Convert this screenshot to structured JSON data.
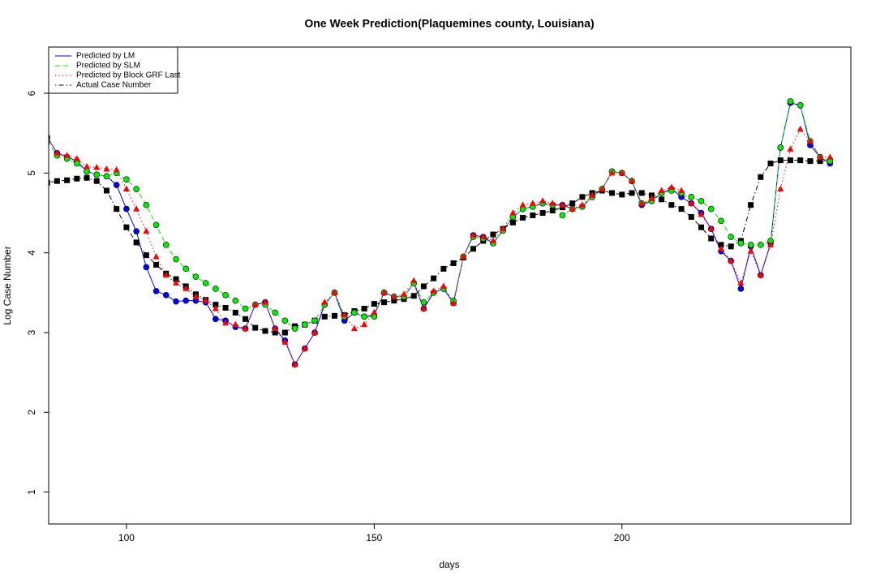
{
  "chart_data": {
    "type": "line",
    "title": "One Week Prediction(Plaquemines county, Louisiana)",
    "x_label": "days",
    "y_label": "Log Case Number",
    "xlim": [
      84.3,
      246.2
    ],
    "ylim": [
      0.6,
      6.58
    ],
    "xticks": [
      100,
      150,
      200
    ],
    "yticks": [
      1,
      2,
      3,
      4,
      5,
      6
    ],
    "legend": "top-left",
    "x": [
      84,
      86,
      88,
      90,
      92,
      94,
      96,
      98,
      100,
      102,
      104,
      106,
      108,
      110,
      112,
      114,
      116,
      118,
      120,
      122,
      124,
      126,
      128,
      130,
      132,
      134,
      136,
      138,
      140,
      142,
      144,
      146,
      148,
      150,
      152,
      154,
      156,
      158,
      160,
      162,
      164,
      166,
      168,
      170,
      172,
      174,
      176,
      178,
      180,
      182,
      184,
      186,
      188,
      190,
      192,
      194,
      196,
      198,
      200,
      202,
      204,
      206,
      208,
      210,
      212,
      214,
      216,
      218,
      220,
      222,
      224,
      226,
      228,
      230,
      232,
      234,
      236,
      238,
      240,
      242
    ],
    "series": [
      {
        "name": "Predicted by LM",
        "color": "#0000ff",
        "line_style": "solid",
        "marker": "circle",
        "values": [
          5.45,
          5.25,
          5.2,
          5.15,
          5.02,
          4.98,
          4.96,
          4.85,
          4.55,
          4.27,
          3.82,
          3.52,
          3.47,
          3.39,
          3.4,
          3.4,
          3.38,
          3.17,
          3.15,
          3.07,
          3.05,
          3.35,
          3.38,
          3.05,
          2.9,
          2.6,
          2.8,
          3.0,
          3.35,
          3.5,
          3.15,
          3.25,
          3.2,
          3.22,
          3.5,
          3.45,
          3.45,
          3.62,
          3.3,
          3.5,
          3.55,
          3.37,
          3.95,
          4.22,
          4.2,
          4.12,
          4.28,
          4.45,
          4.55,
          4.58,
          4.62,
          4.6,
          4.6,
          4.55,
          4.58,
          4.7,
          4.8,
          5.02,
          5.0,
          4.9,
          4.6,
          4.65,
          4.75,
          4.8,
          4.7,
          4.62,
          4.5,
          4.3,
          4.02,
          3.9,
          3.55,
          4.08,
          3.72,
          4.12,
          5.32,
          5.88,
          5.85,
          5.35,
          5.2,
          5.12
        ]
      },
      {
        "name": "Predicted by SLM",
        "color": "#00ee00",
        "line_style": "dashed",
        "marker": "circle",
        "values": [
          5.4,
          5.22,
          5.18,
          5.12,
          5.02,
          4.98,
          4.96,
          5.0,
          4.92,
          4.8,
          4.6,
          4.35,
          4.1,
          3.92,
          3.8,
          3.7,
          3.62,
          3.55,
          3.47,
          3.4,
          3.3,
          3.35,
          3.35,
          3.25,
          3.15,
          3.05,
          3.1,
          3.15,
          3.35,
          3.5,
          3.2,
          3.25,
          3.2,
          3.2,
          3.5,
          3.45,
          3.45,
          3.62,
          3.38,
          3.5,
          3.55,
          3.4,
          3.95,
          4.2,
          4.18,
          4.12,
          4.28,
          4.45,
          4.55,
          4.58,
          4.62,
          4.6,
          4.47,
          4.55,
          4.58,
          4.7,
          4.8,
          5.02,
          5.0,
          4.9,
          4.62,
          4.65,
          4.75,
          4.78,
          4.75,
          4.7,
          4.65,
          4.55,
          4.4,
          4.2,
          4.12,
          4.1,
          4.1,
          4.15,
          5.32,
          5.9,
          5.85,
          5.4,
          5.2,
          5.15
        ]
      },
      {
        "name": "Predicted by Block GRF Last",
        "color": "#ff0000",
        "line_style": "dotted",
        "marker": "triangle",
        "values": [
          5.45,
          5.25,
          5.22,
          5.18,
          5.08,
          5.07,
          5.05,
          5.04,
          4.8,
          4.55,
          4.27,
          3.95,
          3.72,
          3.62,
          3.55,
          3.45,
          3.4,
          3.3,
          3.12,
          3.1,
          3.05,
          3.35,
          3.38,
          3.05,
          2.88,
          2.6,
          2.8,
          3.0,
          3.38,
          3.5,
          3.22,
          3.05,
          3.1,
          3.25,
          3.5,
          3.45,
          3.48,
          3.65,
          3.3,
          3.52,
          3.58,
          3.37,
          3.95,
          4.22,
          4.2,
          4.15,
          4.3,
          4.5,
          4.6,
          4.62,
          4.65,
          4.62,
          4.6,
          4.55,
          4.6,
          4.72,
          4.8,
          5.0,
          5.0,
          4.9,
          4.62,
          4.68,
          4.78,
          4.82,
          4.78,
          4.62,
          4.48,
          4.3,
          4.05,
          3.9,
          3.62,
          4.02,
          3.72,
          4.1,
          4.8,
          5.3,
          5.55,
          5.4,
          5.2,
          5.2
        ]
      },
      {
        "name": "Actual Case Number",
        "color": "#000000",
        "line_style": "dotdash",
        "marker": "square",
        "values": [
          4.88,
          4.9,
          4.91,
          4.93,
          4.94,
          4.9,
          4.78,
          4.55,
          4.32,
          4.13,
          3.97,
          3.85,
          3.74,
          3.67,
          3.58,
          3.48,
          3.41,
          3.35,
          3.31,
          3.25,
          3.17,
          3.06,
          3.02,
          3.0,
          3.0,
          3.08,
          3.1,
          3.15,
          3.2,
          3.21,
          3.22,
          3.27,
          3.3,
          3.36,
          3.38,
          3.4,
          3.42,
          3.46,
          3.58,
          3.68,
          3.8,
          3.87,
          3.94,
          4.05,
          4.15,
          4.23,
          4.3,
          4.38,
          4.44,
          4.47,
          4.5,
          4.53,
          4.57,
          4.62,
          4.7,
          4.75,
          4.78,
          4.75,
          4.73,
          4.75,
          4.75,
          4.72,
          4.67,
          4.6,
          4.55,
          4.45,
          4.32,
          4.18,
          4.1,
          4.08,
          4.15,
          4.6,
          4.95,
          5.12,
          5.16,
          5.16,
          5.16,
          5.15,
          5.15,
          5.15
        ]
      }
    ]
  }
}
